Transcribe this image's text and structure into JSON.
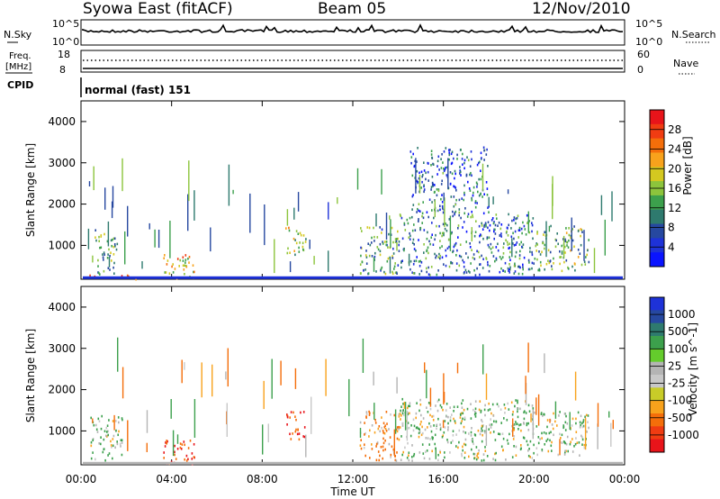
{
  "header": {
    "station": "Syowa East (fitACF)",
    "beam": "Beam 05",
    "date": "12/Nov/2010"
  },
  "top_panels": {
    "nsky_label": "N.Sky",
    "nsearch_label": "N.Search",
    "freq_label_1": "Freq.",
    "freq_label_2": "[MHz]",
    "nave_label": "Nave",
    "cpid_label": "CPID",
    "cpid_text": "normal (fast) 151",
    "noise_ticks_left": [
      "10^5",
      "10^0"
    ],
    "noise_ticks_right": [
      "10^5",
      "10^0"
    ],
    "freq_ticks": [
      "18",
      "8"
    ],
    "nave_ticks": [
      "60",
      "0"
    ]
  },
  "colorbars": {
    "power": {
      "label": "Power [dB]",
      "ticks": [
        "28",
        "24",
        "20",
        "16",
        "12",
        "8",
        "4"
      ],
      "colors": [
        "#e8141a",
        "#f03c12",
        "#f46e0a",
        "#f8a21c",
        "#d4c820",
        "#8cc43c",
        "#3ca04c",
        "#2e7a6e",
        "#2648a0",
        "#1e32d8",
        "#0a14ff"
      ]
    },
    "velocity": {
      "label": "Velocity [m s^-1]",
      "ticks": [
        "1000",
        "500",
        "100",
        "25",
        "-25",
        "-100",
        "-500",
        "-1000"
      ],
      "colors": [
        "#1e32d8",
        "#2648a0",
        "#2e7a6e",
        "#3ca04c",
        "#64cc2c",
        "#b4b4b4",
        "#c8c8c8",
        "#c8cc28",
        "#f8a21c",
        "#f46e0a",
        "#f03c12",
        "#e8141a"
      ]
    }
  },
  "chart_data": [
    {
      "type": "heatmap",
      "title": "",
      "ylabel": "Slant Range [km]",
      "xlabel": "Time UT",
      "x_ticks": [
        "00:00",
        "04:00",
        "08:00",
        "12:00",
        "16:00",
        "20:00",
        "00:00"
      ],
      "y_ticks": [
        1000,
        2000,
        3000,
        4000
      ],
      "ylim": [
        180,
        4500
      ],
      "xlim_hours": [
        0,
        24
      ],
      "colorbar": "Power [dB]",
      "patches": [
        {
          "t0": 0.0,
          "t1": 0.6,
          "r0": 200,
          "r1": 300,
          "value": 24
        },
        {
          "t0": 0.6,
          "t1": 1.6,
          "r0": 300,
          "r1": 1400,
          "value": 12
        },
        {
          "t0": 1.5,
          "t1": 2.4,
          "r0": 200,
          "r1": 300,
          "value": 28
        },
        {
          "t0": 3.6,
          "t1": 5.0,
          "r0": 200,
          "r1": 800,
          "value": 20
        },
        {
          "t0": 9.0,
          "t1": 9.9,
          "r0": 800,
          "r1": 1500,
          "value": 16
        },
        {
          "t0": 12.3,
          "t1": 14.0,
          "r0": 300,
          "r1": 1500,
          "value": 12
        },
        {
          "t0": 14.0,
          "t1": 20.0,
          "r0": 300,
          "r1": 1800,
          "value": 8
        },
        {
          "t0": 20.0,
          "t1": 22.4,
          "r0": 400,
          "r1": 1500,
          "value": 12
        },
        {
          "t0": 14.5,
          "t1": 18.0,
          "r0": 1800,
          "r1": 3400,
          "value": 6
        }
      ]
    },
    {
      "type": "heatmap",
      "title": "",
      "ylabel": "Slant Range [km]",
      "xlabel": "Time UT",
      "x_ticks": [
        "00:00",
        "04:00",
        "08:00",
        "12:00",
        "16:00",
        "20:00",
        "00:00"
      ],
      "y_ticks": [
        1000,
        2000,
        3000,
        4000
      ],
      "ylim": [
        180,
        4500
      ],
      "xlim_hours": [
        0,
        24
      ],
      "colorbar": "Velocity [m s^-1]",
      "patches": [
        {
          "t0": 0.4,
          "t1": 1.8,
          "r0": 300,
          "r1": 1400,
          "value": 100
        },
        {
          "t0": 3.6,
          "t1": 5.0,
          "r0": 200,
          "r1": 800,
          "value": -500
        },
        {
          "t0": 9.0,
          "t1": 9.9,
          "r0": 800,
          "r1": 1500,
          "value": -500
        },
        {
          "t0": 12.3,
          "t1": 14.0,
          "r0": 300,
          "r1": 1500,
          "value": -100
        },
        {
          "t0": 14.0,
          "t1": 20.0,
          "r0": 300,
          "r1": 1800,
          "value": 100
        },
        {
          "t0": 20.0,
          "t1": 22.4,
          "r0": 400,
          "r1": 1500,
          "value": 100
        }
      ]
    }
  ]
}
